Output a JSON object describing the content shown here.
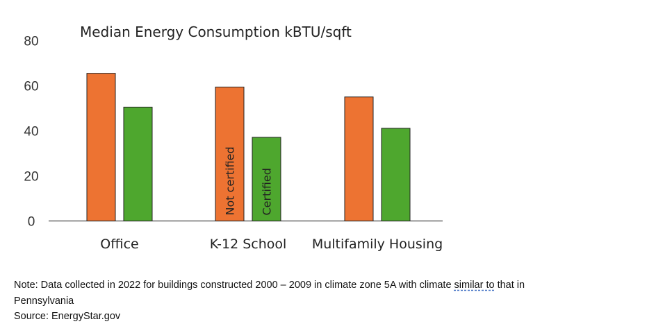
{
  "chart_data": {
    "type": "bar",
    "title": "Median Energy Consumption kBTU/sqft",
    "categories": [
      "Office",
      "K-12 School",
      "Multifamily Housing"
    ],
    "series": [
      {
        "name": "Not certified",
        "color": "#ed7332",
        "values": [
          65.5,
          59.4,
          55.0
        ]
      },
      {
        "name": "Certified",
        "color": "#4ea72e",
        "values": [
          50.5,
          37.1,
          41.1
        ]
      }
    ],
    "yticks": [
      0,
      20,
      40,
      60,
      80
    ],
    "ylim": [
      0,
      80
    ],
    "grid": false,
    "legend": "in-bar labels on K-12 School bars"
  },
  "note": {
    "line1_pre": "Note: Data collected in 2022 for buildings constructed 2000 – 2009 in climate zone 5A with climate ",
    "line1_underlined": "similar to",
    "line1_post": " that in",
    "line2": "Pennsylvania",
    "source": "Source: EnergyStar.gov"
  }
}
